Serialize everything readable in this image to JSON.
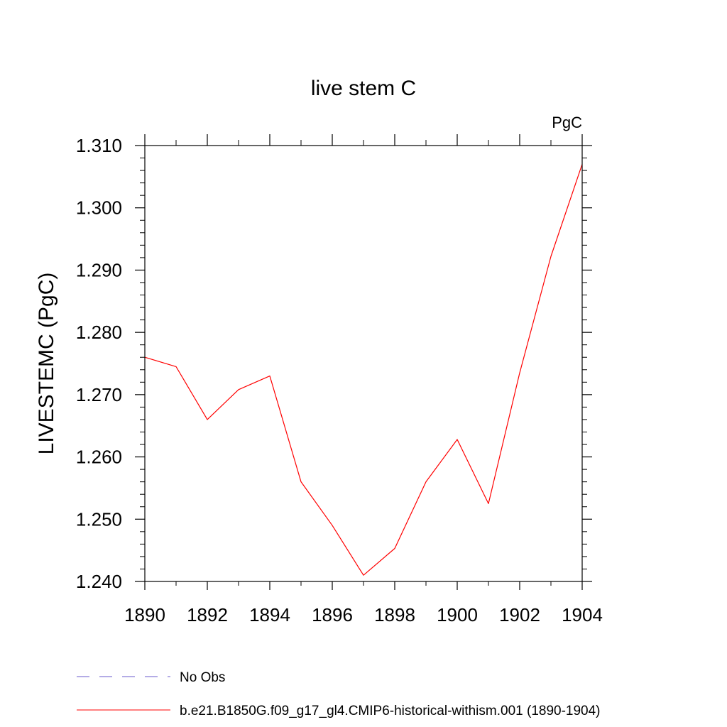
{
  "chart_data": {
    "type": "line",
    "title": "live stem C",
    "units_label": "PgC",
    "ylabel": "LIVESTEMC  (PgC)",
    "xlabel": "",
    "xlim": [
      1890,
      1904
    ],
    "ylim": [
      1.24,
      1.31
    ],
    "x_ticks": [
      "1890",
      "1892",
      "1894",
      "1896",
      "1898",
      "1900",
      "1902",
      "1904"
    ],
    "y_ticks": [
      "1.240",
      "1.250",
      "1.260",
      "1.270",
      "1.280",
      "1.290",
      "1.300",
      "1.310"
    ],
    "grid": false,
    "legend_position": "bottom-left",
    "series": [
      {
        "name": "b.e21.B1850G.f09_g17_gl4.CMIP6-historical-withism.001 (1890-1904)",
        "color": "#ff0000",
        "x": [
          1890,
          1891,
          1892,
          1893,
          1894,
          1895,
          1896,
          1897,
          1898,
          1899,
          1900,
          1901,
          1902,
          1903,
          1904
        ],
        "values": [
          1.276,
          1.2745,
          1.266,
          1.2708,
          1.273,
          1.256,
          1.249,
          1.241,
          1.2453,
          1.256,
          1.2628,
          1.2525,
          1.2735,
          1.2922,
          1.307
        ]
      }
    ],
    "legend": [
      {
        "label": "No Obs",
        "color": "#6a5acd",
        "style": "dashed"
      },
      {
        "label": "b.e21.B1850G.f09_g17_gl4.CMIP6-historical-withism.001 (1890-1904)",
        "color": "#ff0000",
        "style": "solid"
      }
    ]
  }
}
